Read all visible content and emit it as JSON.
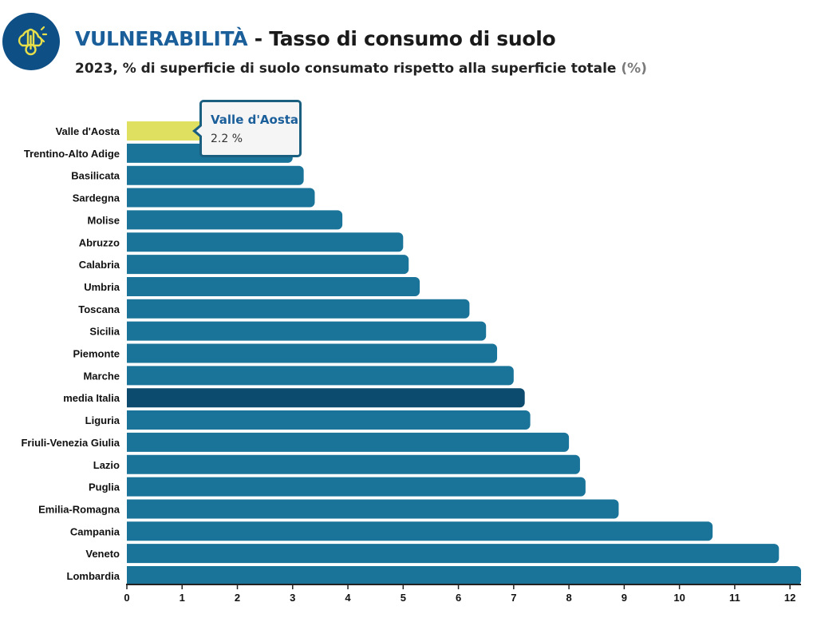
{
  "header": {
    "logo_icon": "thermometer-sun-cloud-icon",
    "title_accent": "VULNERABILITÀ",
    "title_rest": " - Tasso di consumo di suolo",
    "subtitle": "2023, % di superficie di suolo consumato rispetto alla superficie totale ",
    "subtitle_unit": "(%)"
  },
  "colors": {
    "bar": "#1a7399",
    "bar_highlight": "#e0e060",
    "bar_average": "#0c4a6e",
    "brand": "#0e4f86"
  },
  "tooltip": {
    "title": "Valle d'Aosta",
    "value": "2.2 %"
  },
  "chart_data": {
    "type": "bar",
    "orientation": "horizontal",
    "title": "VULNERABILITÀ - Tasso di consumo di suolo",
    "subtitle": "2023, % di superficie di suolo consumato rispetto alla superficie totale (%)",
    "categories": [
      "Valle d'Aosta",
      "Trentino-Alto Adige",
      "Basilicata",
      "Sardegna",
      "Molise",
      "Abruzzo",
      "Calabria",
      "Umbria",
      "Toscana",
      "Sicilia",
      "Piemonte",
      "Marche",
      "media Italia",
      "Liguria",
      "Friuli-Venezia Giulia",
      "Lazio",
      "Puglia",
      "Emilia-Romagna",
      "Campania",
      "Veneto",
      "Lombardia"
    ],
    "values": [
      2.2,
      3.0,
      3.2,
      3.4,
      3.9,
      5.0,
      5.1,
      5.3,
      6.2,
      6.5,
      6.7,
      7.0,
      7.2,
      7.3,
      8.0,
      8.2,
      8.3,
      8.9,
      10.6,
      11.8,
      12.2
    ],
    "highlighted": "Valle d'Aosta",
    "average_category": "media Italia",
    "xlim": [
      0,
      12.2
    ],
    "xticks": [
      0,
      1,
      2,
      3,
      4,
      5,
      6,
      7,
      8,
      9,
      10,
      11,
      12
    ],
    "xlabel": "",
    "ylabel": "",
    "grid": false,
    "legend": "none"
  }
}
